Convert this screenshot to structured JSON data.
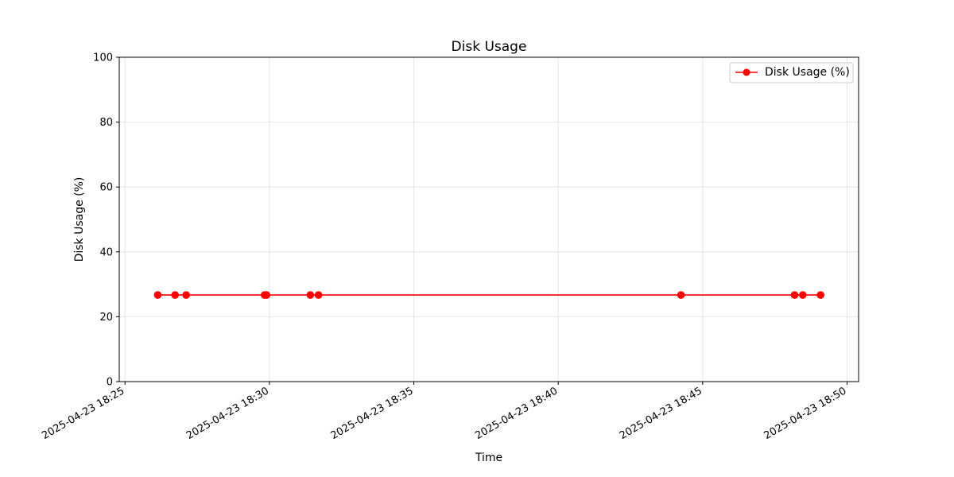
{
  "chart_data": {
    "type": "line",
    "title": "Disk Usage",
    "xlabel": "Time",
    "ylabel": "Disk Usage (%)",
    "xlim": [
      "2025-04-23 18:24:48",
      "2025-04-23 18:50:24"
    ],
    "ylim": [
      0,
      100
    ],
    "x_ticks": [
      "2025-04-23 18:25",
      "2025-04-23 18:30",
      "2025-04-23 18:35",
      "2025-04-23 18:40",
      "2025-04-23 18:45",
      "2025-04-23 18:50"
    ],
    "y_ticks": [
      0,
      20,
      40,
      60,
      80,
      100
    ],
    "grid": true,
    "legend_position": "top-right",
    "series": [
      {
        "name": "Disk Usage (%)",
        "color": "#ff0000",
        "marker": "circle",
        "x": [
          "2025-04-23 18:26:08",
          "2025-04-23 18:26:44",
          "2025-04-23 18:27:07",
          "2025-04-23 18:29:50",
          "2025-04-23 18:29:54",
          "2025-04-23 18:31:25",
          "2025-04-23 18:31:42",
          "2025-04-23 18:44:15",
          "2025-04-23 18:48:11",
          "2025-04-23 18:48:28",
          "2025-04-23 18:49:05"
        ],
        "values": [
          26.7,
          26.7,
          26.7,
          26.7,
          26.7,
          26.7,
          26.7,
          26.7,
          26.7,
          26.7,
          26.7
        ]
      }
    ]
  }
}
